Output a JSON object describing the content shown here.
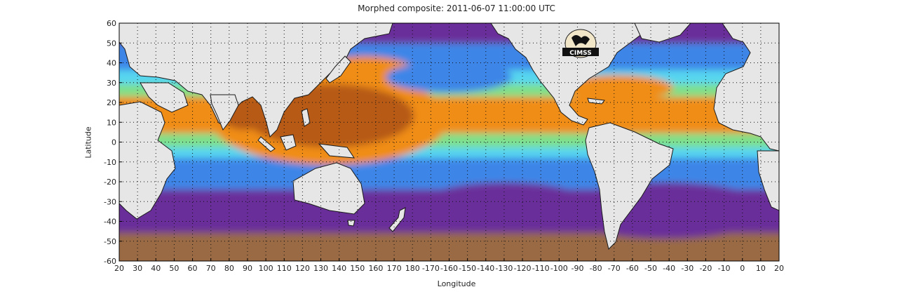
{
  "title": "Morphed composite: 2011-06-07 11:00:00 UTC",
  "xlabel": "Longitude",
  "ylabel": "Latitude",
  "logo_text": "CIMSS",
  "x_ticks": [
    "20",
    "30",
    "40",
    "50",
    "60",
    "70",
    "80",
    "90",
    "100",
    "110",
    "120",
    "130",
    "140",
    "150",
    "160",
    "170",
    "180",
    "-170",
    "-160",
    "-150",
    "-140",
    "-130",
    "-120",
    "-110",
    "-100",
    "-90",
    "-80",
    "-70",
    "-60",
    "-50",
    "-40",
    "-30",
    "-20",
    "-10",
    "0",
    "10",
    "20"
  ],
  "y_ticks": [
    "60",
    "50",
    "40",
    "30",
    "20",
    "10",
    "0",
    "-10",
    "-20",
    "-30",
    "-40",
    "-50",
    "-60"
  ],
  "colors": {
    "land": "#e6e6e6",
    "very_moist": "#b65a12",
    "moist": "#f08d18",
    "mid": "#f5b13a",
    "green": "#7ee08a",
    "cyan": "#56d6f0",
    "blue": "#3c86e8",
    "purple": "#6a2f9a",
    "dry_brown": "#9a6a45"
  }
}
